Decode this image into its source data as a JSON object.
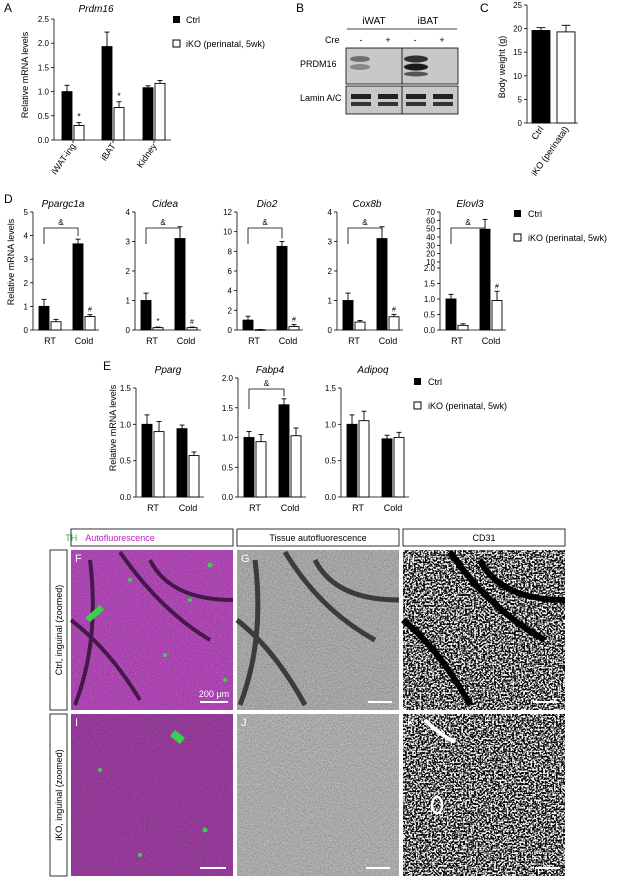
{
  "panels": {
    "A": {
      "letter": "A",
      "gene": "Prdm16",
      "ylabel": "Relative mRNA levels",
      "legend": [
        "Ctrl",
        "iKO (perinatal, 5wk)"
      ],
      "tick_labels": [
        "0.0",
        "0.5",
        "1.0",
        "1.5",
        "2.0",
        "2.5"
      ],
      "categories": [
        "iWAT-ing",
        "iBAT",
        "Kidney"
      ],
      "sig_marks": [
        "*",
        "*"
      ]
    },
    "B": {
      "letter": "B",
      "headers": [
        "iWAT",
        "iBAT"
      ],
      "cre_label": "Cre",
      "cre_signs": [
        "-",
        "+",
        "-",
        "+"
      ],
      "band_labels": [
        "PRDM16",
        "Lamin A/C"
      ]
    },
    "C": {
      "letter": "C",
      "ylabel": "Body weight (g)",
      "tick_labels": [
        "0",
        "5",
        "10",
        "15",
        "20",
        "25"
      ],
      "categories": [
        "Ctrl",
        "iKO (perinatal)"
      ]
    },
    "D": {
      "letter": "D",
      "ylabel": "Relative mRNA levels",
      "legend": [
        "Ctrl",
        "iKO (perinatal, 5wk)"
      ],
      "genes": [
        "Ppargc1a",
        "Cidea",
        "Dio2",
        "Cox8b",
        "Elovl3"
      ],
      "xcats": [
        "RT",
        "Cold"
      ],
      "ticks": [
        [
          "0",
          "1",
          "2",
          "3",
          "4",
          "5"
        ],
        [
          "0",
          "1",
          "2",
          "3",
          "4"
        ],
        [
          "0",
          "2",
          "4",
          "6",
          "8",
          "10",
          "12"
        ],
        [
          "0",
          "1",
          "2",
          "3",
          "4"
        ],
        [
          "0.0",
          "0.5",
          "1.0",
          "1.5",
          "2.0",
          "10",
          "20",
          "30",
          "40",
          "50",
          "60",
          "70"
        ]
      ],
      "bracket_mark": "&",
      "marks": [
        "*",
        "#"
      ]
    },
    "E": {
      "letter": "E",
      "ylabel": "Relative mRNA levels",
      "legend": [
        "Ctrl",
        "iKO (perinatal, 5wk)"
      ],
      "genes": [
        "Pparg",
        "Fabp4",
        "Adipoq"
      ],
      "xcats": [
        "RT",
        "Cold"
      ],
      "ticks": [
        [
          "0.0",
          "0.5",
          "1.0",
          "1.5"
        ],
        [
          "0.0",
          "0.5",
          "1.0",
          "1.5",
          "2.0"
        ],
        [
          "0.0",
          "0.5",
          "1.0",
          "1.5"
        ]
      ],
      "bracket_mark": "&"
    },
    "micro": {
      "header_th": "TH",
      "header_auto": "Autofluorescence",
      "header_tissue": "Tissue autofluorescence",
      "header_cd31": "CD31",
      "row1_label": "Ctrl, inguinal (zoomed)",
      "row2_label": "iKO, inguinal (zoomed)",
      "scale_label": "200 μm",
      "letters": [
        "F",
        "G",
        "H",
        "I",
        "J",
        "K"
      ],
      "colors": {
        "green": "#33cc55",
        "magenta": "#b020b0"
      }
    }
  },
  "chart_data": [
    {
      "type": "bar",
      "title": "Prdm16",
      "ylabel": "Relative mRNA levels",
      "ylim": [
        0,
        2.5
      ],
      "categories": [
        "iWAT-ing",
        "iBAT",
        "Kidney"
      ],
      "series": [
        {
          "name": "Ctrl",
          "values": [
            1.0,
            1.93,
            1.08
          ],
          "errors": [
            0.13,
            0.3,
            0.04
          ]
        },
        {
          "name": "iKO (perinatal, 5wk)",
          "values": [
            0.3,
            0.67,
            1.17
          ],
          "errors": [
            0.06,
            0.12,
            0.06
          ]
        }
      ]
    },
    {
      "type": "bar",
      "ylabel": "Body weight (g)",
      "ylim": [
        0,
        25
      ],
      "categories": [
        "Ctrl",
        "iKO (perinatal)"
      ],
      "values": [
        19.6,
        19.3
      ],
      "errors": [
        0.6,
        1.4
      ]
    },
    {
      "type": "bar",
      "title": "Ppargc1a",
      "ylabel": "Relative mRNA levels",
      "ylim": [
        0,
        5
      ],
      "categories": [
        "RT",
        "Cold"
      ],
      "series": [
        {
          "name": "Ctrl",
          "values": [
            1.0,
            3.65
          ],
          "errors": [
            0.3,
            0.2
          ]
        },
        {
          "name": "iKO (perinatal, 5wk)",
          "values": [
            0.35,
            0.57
          ],
          "errors": [
            0.1,
            0.08
          ]
        }
      ]
    },
    {
      "type": "bar",
      "title": "Cidea",
      "ylim": [
        0,
        4
      ],
      "categories": [
        "RT",
        "Cold"
      ],
      "series": [
        {
          "name": "Ctrl",
          "values": [
            1.0,
            3.1
          ],
          "errors": [
            0.25,
            0.4
          ]
        },
        {
          "name": "iKO (perinatal, 5wk)",
          "values": [
            0.08,
            0.08
          ],
          "errors": [
            0.02,
            0.02
          ]
        }
      ]
    },
    {
      "type": "bar",
      "title": "Dio2",
      "ylim": [
        0,
        12
      ],
      "categories": [
        "RT",
        "Cold"
      ],
      "series": [
        {
          "name": "Ctrl",
          "values": [
            1.0,
            8.5
          ],
          "errors": [
            0.4,
            0.5
          ]
        },
        {
          "name": "iKO (perinatal, 5wk)",
          "values": [
            0.03,
            0.35
          ],
          "errors": [
            0.02,
            0.2
          ]
        }
      ]
    },
    {
      "type": "bar",
      "title": "Cox8b",
      "ylim": [
        0,
        4
      ],
      "categories": [
        "RT",
        "Cold"
      ],
      "series": [
        {
          "name": "Ctrl",
          "values": [
            1.0,
            3.1
          ],
          "errors": [
            0.25,
            0.4
          ]
        },
        {
          "name": "iKO (perinatal, 5wk)",
          "values": [
            0.27,
            0.45
          ],
          "errors": [
            0.05,
            0.08
          ]
        }
      ]
    },
    {
      "type": "bar",
      "title": "Elovl3",
      "ylim": [
        0,
        70
      ],
      "categories": [
        "RT",
        "Cold"
      ],
      "series": [
        {
          "name": "Ctrl",
          "values": [
            1.0,
            49.0
          ],
          "errors": [
            0.15,
            12.0
          ]
        },
        {
          "name": "iKO (perinatal, 5wk)",
          "values": [
            0.15,
            0.95
          ],
          "errors": [
            0.05,
            0.3
          ]
        }
      ]
    },
    {
      "type": "bar",
      "title": "Pparg",
      "ylabel": "Relative mRNA levels",
      "ylim": [
        0,
        1.5
      ],
      "categories": [
        "RT",
        "Cold"
      ],
      "series": [
        {
          "name": "Ctrl",
          "values": [
            1.0,
            0.94
          ],
          "errors": [
            0.13,
            0.05
          ]
        },
        {
          "name": "iKO (perinatal, 5wk)",
          "values": [
            0.9,
            0.57
          ],
          "errors": [
            0.14,
            0.05
          ]
        }
      ]
    },
    {
      "type": "bar",
      "title": "Fabp4",
      "ylim": [
        0,
        2.0
      ],
      "categories": [
        "RT",
        "Cold"
      ],
      "series": [
        {
          "name": "Ctrl",
          "values": [
            1.0,
            1.55
          ],
          "errors": [
            0.1,
            0.1
          ]
        },
        {
          "name": "iKO (perinatal, 5wk)",
          "values": [
            0.93,
            1.03
          ],
          "errors": [
            0.12,
            0.13
          ]
        }
      ]
    },
    {
      "type": "bar",
      "title": "Adipoq",
      "ylim": [
        0,
        1.5
      ],
      "categories": [
        "RT",
        "Cold"
      ],
      "series": [
        {
          "name": "Ctrl",
          "values": [
            1.0,
            0.8
          ],
          "errors": [
            0.13,
            0.05
          ]
        },
        {
          "name": "iKO (perinatal, 5wk)",
          "values": [
            1.05,
            0.82
          ],
          "errors": [
            0.13,
            0.07
          ]
        }
      ]
    }
  ]
}
